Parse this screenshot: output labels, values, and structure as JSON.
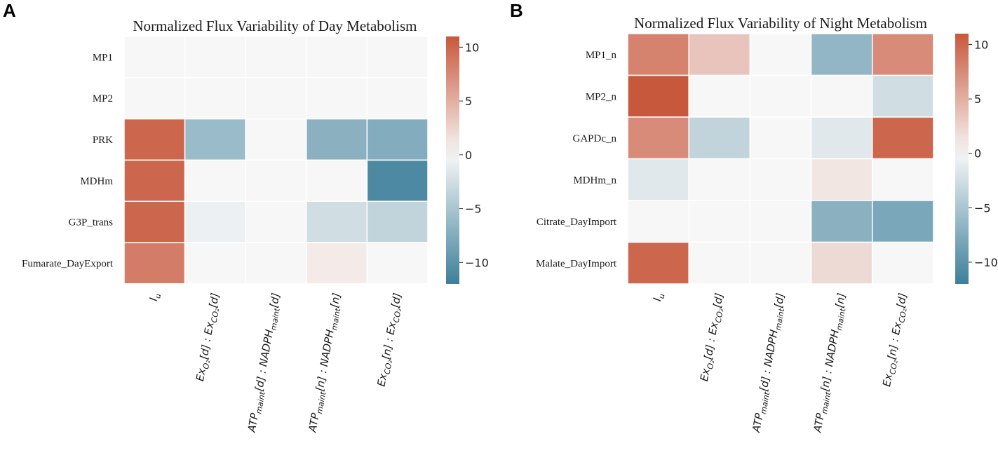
{
  "chart_data": [
    {
      "panel": "A",
      "type": "heatmap",
      "title": "Normalized Flux Variability of Day Metabolism",
      "rows": [
        "MP1",
        "MP2",
        "PRK",
        "MDHm",
        "G3P_trans",
        "Fumarate_DayExport"
      ],
      "columns": [
        "Iᵤ",
        "Exₒ₂[d] : Ex_CO₂[d]",
        "ATP_maint[d] : NADPH_maint[d]",
        "ATP_maint[n] : NADPH_maint[n]",
        "Ex_CO₂[n] : Ex_CO₂[d]"
      ],
      "values": [
        [
          0,
          0,
          0,
          0,
          0
        ],
        [
          0,
          0,
          0,
          0,
          0
        ],
        [
          10,
          -6,
          0,
          -7,
          -7.5
        ],
        [
          10,
          0,
          0,
          0,
          -11
        ],
        [
          10,
          -0.7,
          0,
          -2.5,
          -3.5
        ],
        [
          8.5,
          0,
          0,
          0.8,
          0
        ]
      ],
      "colorbar": {
        "min": -12,
        "max": 11,
        "ticks": [
          10,
          5,
          0,
          -5,
          -10
        ],
        "low_color": "#3d7f9b",
        "mid_color": "#f7f7f7",
        "high_color": "#c8583c"
      }
    },
    {
      "panel": "B",
      "type": "heatmap",
      "title": "Normalized Flux Variability of Night Metabolism",
      "rows": [
        "MP1_n",
        "MP2_n",
        "GAPDc_n",
        "MDHm_n",
        "Citrate_DayImport",
        "Malate_DayImport"
      ],
      "columns": [
        "Iᵤ",
        "Exₒ₂[d] : Ex_CO₂[d]",
        "ATP_maint[d] : NADPH_maint[d]",
        "ATP_maint[n] : NADPH_maint[n]",
        "Ex_CO₂[n] : Ex_CO₂[d]"
      ],
      "values": [
        [
          8,
          3.5,
          0,
          -6.5,
          7.5
        ],
        [
          11,
          0,
          0,
          0,
          -2.5
        ],
        [
          7.5,
          -3.5,
          0,
          -1.5,
          10
        ],
        [
          -1.5,
          0,
          0,
          1.2,
          0
        ],
        [
          0,
          0,
          0,
          -7,
          -8
        ],
        [
          10,
          0,
          0,
          2,
          0
        ]
      ],
      "colorbar": {
        "min": -12,
        "max": 11,
        "ticks": [
          10,
          5,
          0,
          -5,
          -10
        ],
        "low_color": "#3d7f9b",
        "mid_color": "#f7f7f7",
        "high_color": "#c8583c"
      }
    }
  ]
}
